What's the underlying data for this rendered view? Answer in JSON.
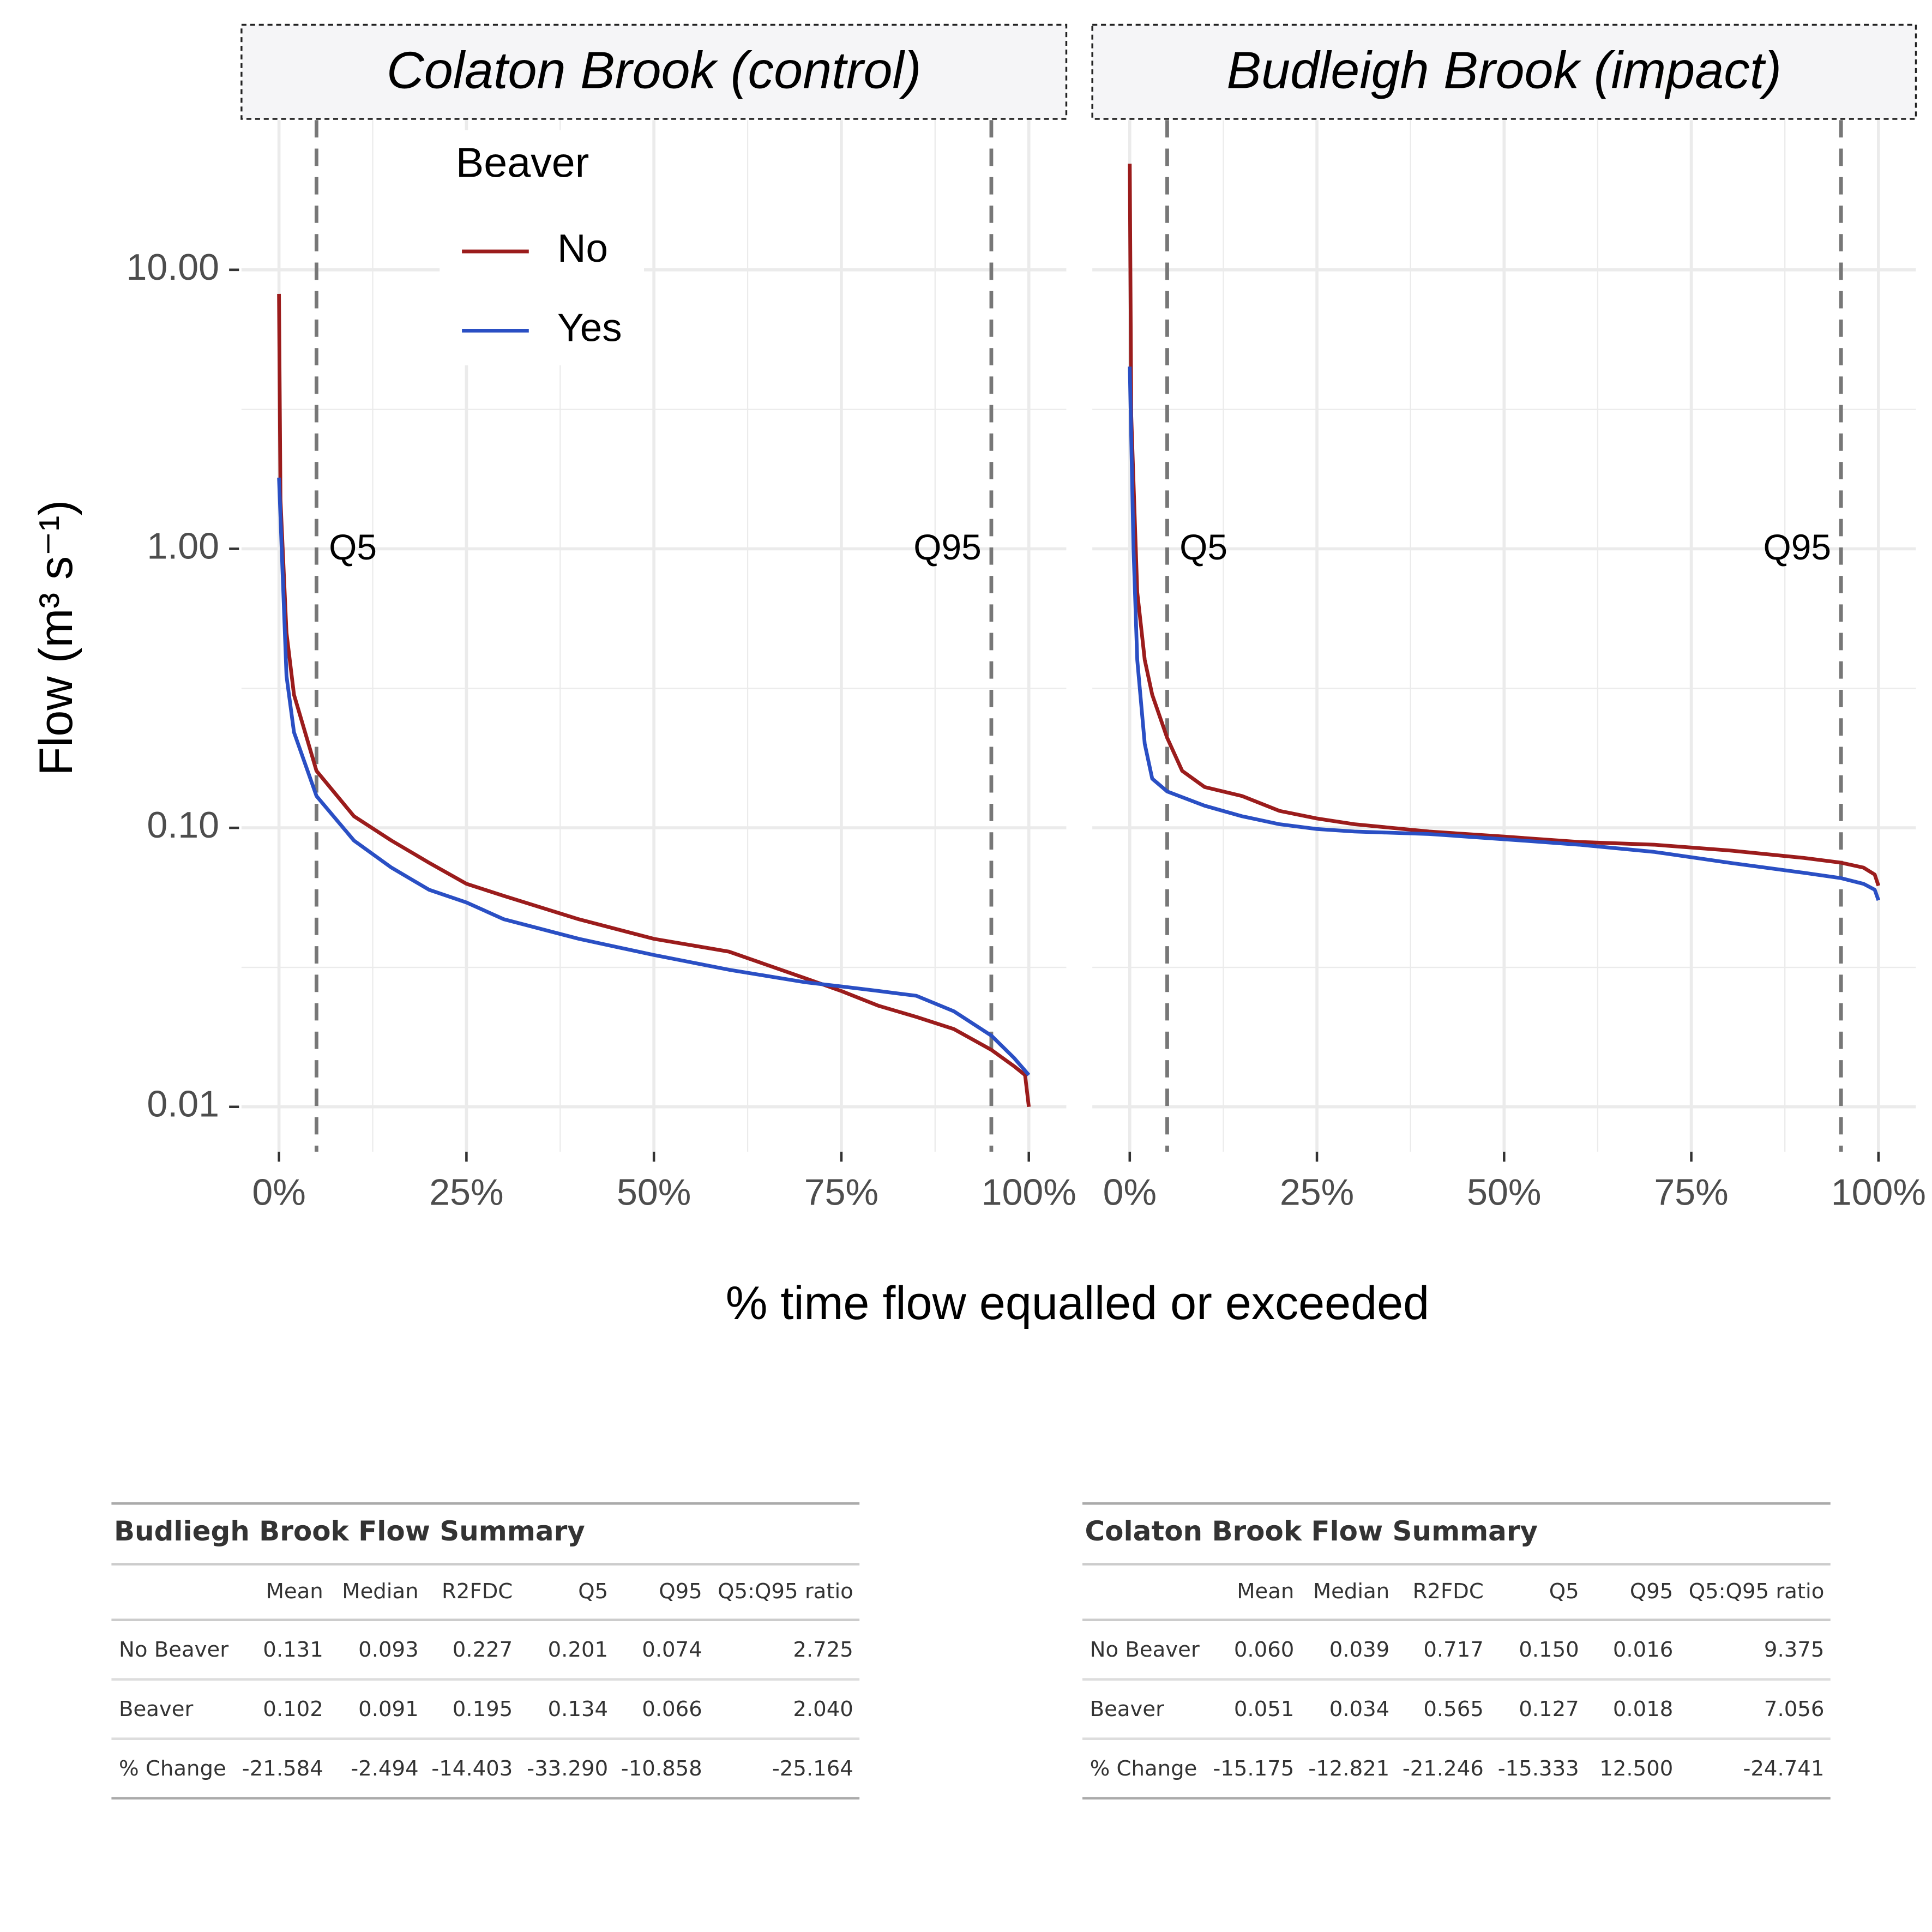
{
  "chart_data": [
    {
      "type": "line",
      "title": "Colaton Brook (control)",
      "x_label": "% time flow equalled or exceeded",
      "y_label": "Flow (m³ s⁻¹)",
      "legend_title": "Beaver",
      "legend": "top-left",
      "log_y": true,
      "grid": true,
      "xlim": [
        -5,
        105
      ],
      "xticks": [
        {
          "value": 0,
          "label": "0%"
        },
        {
          "value": 25,
          "label": "25%"
        },
        {
          "value": 50,
          "label": "50%"
        },
        {
          "value": 75,
          "label": "75%"
        },
        {
          "value": 100,
          "label": "100%"
        }
      ],
      "minor_xticks": [
        12.5,
        37.5,
        62.5,
        87.5
      ],
      "ylim": [
        0.0069,
        34.4
      ],
      "yticks": [
        {
          "value": 10,
          "label": "10.00"
        },
        {
          "value": 1,
          "label": "1.00"
        },
        {
          "value": 0.1,
          "label": "0.10"
        },
        {
          "value": 0.01,
          "label": "0.01"
        }
      ],
      "minor_yticks": [
        3.16,
        0.316,
        0.0316
      ],
      "vlines": [
        {
          "value": 5,
          "label": "Q5"
        },
        {
          "value": 95,
          "label": "Q95"
        }
      ],
      "series": [
        {
          "name": "No",
          "color": "#9b1c1c",
          "x": [
            0,
            0.2,
            1,
            2,
            5,
            10,
            15,
            20,
            25,
            30,
            40,
            50,
            60,
            70,
            75,
            80,
            85,
            90,
            95,
            98,
            99.5,
            100
          ],
          "values": [
            8.2,
            1.5,
            0.5,
            0.3,
            0.16,
            0.11,
            0.09,
            0.075,
            0.063,
            0.057,
            0.047,
            0.04,
            0.036,
            0.029,
            0.026,
            0.023,
            0.021,
            0.019,
            0.016,
            0.014,
            0.013,
            0.01
          ]
        },
        {
          "name": "Yes",
          "color": "#2a4fc4",
          "x": [
            0,
            1,
            2,
            5,
            10,
            15,
            20,
            25,
            30,
            40,
            50,
            60,
            70,
            75,
            80,
            85,
            90,
            95,
            98,
            100
          ],
          "values": [
            1.8,
            0.35,
            0.22,
            0.13,
            0.09,
            0.072,
            0.06,
            0.054,
            0.047,
            0.04,
            0.035,
            0.031,
            0.028,
            0.027,
            0.026,
            0.025,
            0.022,
            0.018,
            0.015,
            0.013
          ]
        }
      ]
    },
    {
      "type": "line",
      "title": "Budleigh Brook (impact)",
      "log_y": true,
      "grid": true,
      "xlim": [
        -5,
        105
      ],
      "xticks": [
        {
          "value": 0,
          "label": "0%"
        },
        {
          "value": 25,
          "label": "25%"
        },
        {
          "value": 50,
          "label": "50%"
        },
        {
          "value": 75,
          "label": "75%"
        },
        {
          "value": 100,
          "label": "100%"
        }
      ],
      "minor_xticks": [
        12.5,
        37.5,
        62.5,
        87.5
      ],
      "ylim": [
        0.0069,
        34.4
      ],
      "vlines": [
        {
          "value": 5,
          "label": "Q5"
        },
        {
          "value": 95,
          "label": "Q95"
        }
      ],
      "series": [
        {
          "color": "#9b1c1c",
          "x": [
            0,
            0.2,
            1,
            2,
            3,
            5,
            7,
            10,
            15,
            20,
            25,
            30,
            40,
            50,
            60,
            70,
            80,
            90,
            95,
            98,
            99.5,
            100
          ],
          "values": [
            24,
            3,
            0.7,
            0.4,
            0.3,
            0.21,
            0.16,
            0.14,
            0.13,
            0.115,
            0.108,
            0.103,
            0.097,
            0.093,
            0.089,
            0.087,
            0.083,
            0.078,
            0.075,
            0.072,
            0.068,
            0.062
          ]
        },
        {
          "color": "#2a4fc4",
          "x": [
            0,
            0.5,
            1,
            2,
            3,
            5,
            10,
            15,
            20,
            25,
            30,
            40,
            50,
            60,
            70,
            80,
            90,
            95,
            98,
            99.5,
            100
          ],
          "values": [
            4.5,
            1,
            0.4,
            0.2,
            0.15,
            0.135,
            0.12,
            0.11,
            0.103,
            0.099,
            0.097,
            0.095,
            0.091,
            0.087,
            0.082,
            0.075,
            0.069,
            0.066,
            0.063,
            0.06,
            0.055
          ]
        }
      ]
    }
  ],
  "tables": [
    {
      "title": "Budliegh Brook Flow Summary",
      "columns": [
        "Mean",
        "Median",
        "R2FDC",
        "Q5",
        "Q95",
        "Q5:Q95 ratio"
      ],
      "rows": [
        {
          "label": "No Beaver",
          "cells": [
            "0.131",
            "0.093",
            "0.227",
            "0.201",
            "0.074",
            "2.725"
          ]
        },
        {
          "label": "Beaver",
          "cells": [
            "0.102",
            "0.091",
            "0.195",
            "0.134",
            "0.066",
            "2.040"
          ]
        },
        {
          "label": "% Change",
          "cells": [
            "-21.584",
            "-2.494",
            "-14.403",
            "-33.290",
            "-10.858",
            "-25.164"
          ]
        }
      ]
    },
    {
      "title": "Colaton Brook Flow Summary",
      "columns": [
        "Mean",
        "Median",
        "R2FDC",
        "Q5",
        "Q95",
        "Q5:Q95 ratio"
      ],
      "rows": [
        {
          "label": "No Beaver",
          "cells": [
            "0.060",
            "0.039",
            "0.717",
            "0.150",
            "0.016",
            "9.375"
          ]
        },
        {
          "label": "Beaver",
          "cells": [
            "0.051",
            "0.034",
            "0.565",
            "0.127",
            "0.018",
            "7.056"
          ]
        },
        {
          "label": "% Change",
          "cells": [
            "-15.175",
            "-12.821",
            "-21.246",
            "-15.333",
            "12.500",
            "-24.741"
          ]
        }
      ]
    }
  ]
}
